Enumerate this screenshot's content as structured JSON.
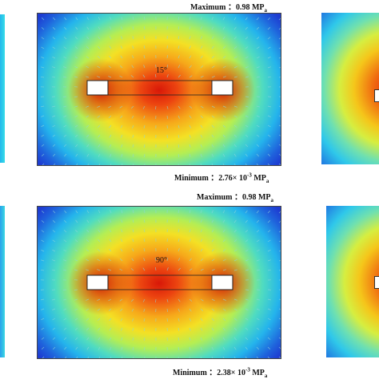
{
  "top_panel": {
    "angle": "15°",
    "maximum": {
      "prefix": "Maximum ：",
      "value": "0.98 MP",
      "unit_sub": "a"
    },
    "minimum": {
      "prefix": "Minimum ：",
      "value": "2.76× 10",
      "exp": "-3",
      "unit": " MP",
      "unit_sub": "a"
    }
  },
  "bottom_panel": {
    "angle": "90°",
    "maximum": {
      "prefix": "Maximum ：",
      "value": "0.98 MP",
      "unit_sub": "a"
    },
    "minimum": {
      "prefix": "Minimum ：",
      "value": "2.38× 10",
      "exp": "-3",
      "unit": " MP",
      "unit_sub": "a"
    }
  },
  "colors": {
    "hot": "#d41408",
    "mid": "#f5e020",
    "cool": "#25c8e8",
    "edge": "#1e3bd1",
    "arrow": "#8fd6d8"
  }
}
